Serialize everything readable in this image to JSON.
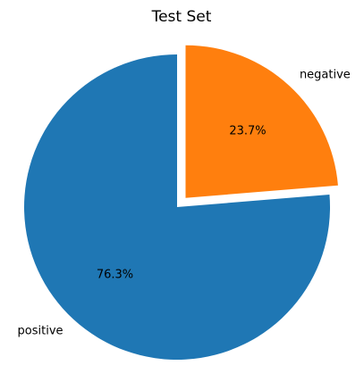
{
  "chart_data": {
    "type": "pie",
    "title": "Test Set",
    "slices": [
      {
        "label": "negative",
        "value": 23.7,
        "pct_label": "23.7%",
        "color": "#ff7f0e",
        "exploded": true
      },
      {
        "label": "positive",
        "value": 76.3,
        "pct_label": "76.3%",
        "color": "#1f77b4",
        "exploded": false
      }
    ],
    "start_angle_deg": 90,
    "direction": "clockwise"
  }
}
